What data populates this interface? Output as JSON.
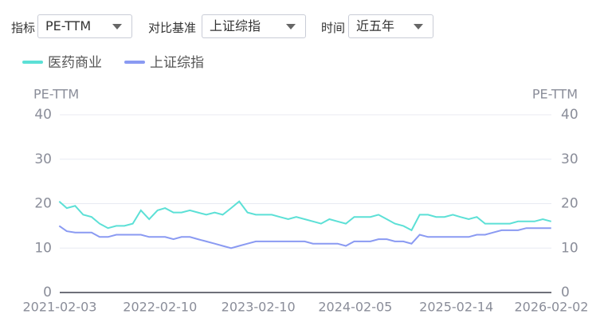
{
  "controls": [
    {
      "label": "指标",
      "value": "PE-TTM"
    },
    {
      "label": "对比基准",
      "value": "上证综指"
    },
    {
      "label": "时间",
      "value": "近五年"
    }
  ],
  "chart_data": {
    "type": "line",
    "ylabel": "PE-TTM",
    "y2label": "PE-TTM",
    "legend": "top-left",
    "grid": true,
    "x": [
      "2021-02",
      "2021-03",
      "2021-04",
      "2021-05",
      "2021-06",
      "2021-07",
      "2021-08",
      "2021-09",
      "2021-10",
      "2021-11",
      "2021-12",
      "2022-01",
      "2022-02",
      "2022-03",
      "2022-04",
      "2022-05",
      "2022-06",
      "2022-07",
      "2022-08",
      "2022-09",
      "2022-10",
      "2022-11",
      "2022-12",
      "2023-01",
      "2023-02",
      "2023-03",
      "2023-04",
      "2023-05",
      "2023-06",
      "2023-07",
      "2023-08",
      "2023-09",
      "2023-10",
      "2023-11",
      "2023-12",
      "2024-01",
      "2024-02",
      "2024-03",
      "2024-04",
      "2024-05",
      "2024-06",
      "2024-07",
      "2024-08",
      "2024-09",
      "2024-10",
      "2024-11",
      "2024-12",
      "2025-01",
      "2025-02",
      "2025-03",
      "2025-04",
      "2025-05",
      "2025-06",
      "2025-07",
      "2025-08",
      "2025-09",
      "2025-10",
      "2025-11",
      "2025-12",
      "2026-01",
      "2026-02"
    ],
    "series": [
      {
        "name": "医药商业",
        "color": "#5ce0d6",
        "values": [
          20.5,
          19,
          19.5,
          17.5,
          17,
          15.5,
          14.5,
          15,
          15,
          15.5,
          18.5,
          16.5,
          18.5,
          19,
          18,
          18,
          18.5,
          18,
          17.5,
          18,
          17.5,
          19,
          20.5,
          18,
          17.5,
          17.5,
          17.5,
          17,
          16.5,
          17,
          16.5,
          16,
          15.5,
          16.5,
          16,
          15.5,
          17,
          17,
          17,
          17.5,
          16.5,
          15.5,
          15,
          14,
          17.5,
          17.5,
          17,
          17,
          17.5,
          17,
          16.5,
          17,
          15.5,
          15.5,
          15.5,
          15.5,
          16,
          16,
          16,
          16.5,
          16
        ]
      },
      {
        "name": "上证综指",
        "color": "#8a9af2",
        "values": [
          15,
          13.8,
          13.5,
          13.5,
          13.5,
          12.5,
          12.5,
          13,
          13,
          13,
          13,
          12.5,
          12.5,
          12.5,
          12,
          12.5,
          12.5,
          12,
          11.5,
          11,
          10.5,
          10,
          10.5,
          11,
          11.5,
          11.5,
          11.5,
          11.5,
          11.5,
          11.5,
          11.5,
          11,
          11,
          11,
          11,
          10.5,
          11.5,
          11.5,
          11.5,
          12,
          12,
          11.5,
          11.5,
          11,
          13,
          12.5,
          12.5,
          12.5,
          12.5,
          12.5,
          12.5,
          13,
          13,
          13.5,
          14,
          14,
          14,
          14.5,
          14.5,
          14.5,
          14.5
        ]
      }
    ],
    "xlim": [
      "2021-02-03",
      "2026-02-02"
    ],
    "xticks": [
      "2021-02-03",
      "2022-02-10",
      "2023-02-10",
      "2024-02-05",
      "2025-02-14",
      "2026-02-02"
    ],
    "ylim": [
      0,
      40
    ],
    "yticks": [
      0,
      10,
      20,
      30,
      40
    ],
    "y2lim": [
      0,
      40
    ],
    "y2ticks": [
      0,
      10,
      20,
      30,
      40
    ]
  }
}
